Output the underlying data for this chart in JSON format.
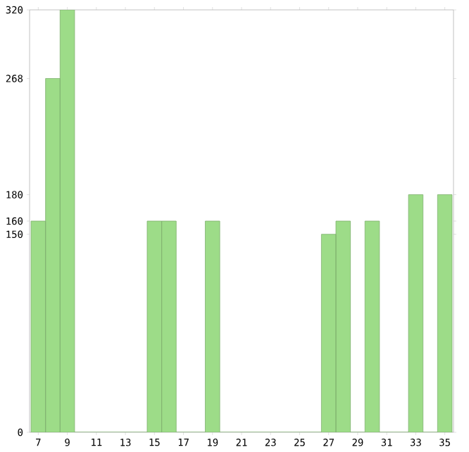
{
  "chart_data": {
    "type": "bar",
    "categories": [
      "7",
      null,
      "9",
      null,
      "11",
      null,
      "13",
      null,
      "15",
      null,
      "17",
      null,
      "19",
      null,
      "21",
      null,
      "23",
      null,
      "25",
      null,
      "27",
      null,
      "29",
      null,
      "31",
      null,
      "33",
      null,
      "35"
    ],
    "values": [
      160,
      268,
      320,
      0,
      0,
      0,
      0,
      0,
      160,
      160,
      0,
      0,
      160,
      0,
      0,
      0,
      0,
      0,
      0,
      0,
      150,
      160,
      0,
      160,
      0,
      0,
      180,
      0,
      180
    ],
    "color": "#9ddc88",
    "ylim": [
      0,
      320
    ],
    "yticks": [
      0,
      150,
      160,
      180,
      268,
      320
    ],
    "grid": false
  }
}
